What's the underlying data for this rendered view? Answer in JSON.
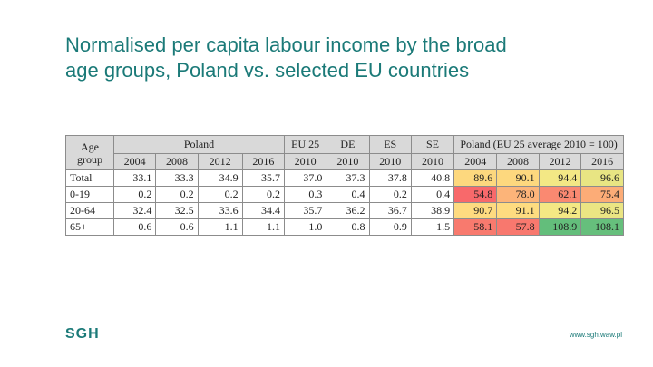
{
  "slide": {
    "title_line1": "Normalised per capita labour income by the broad",
    "title_line2": "age groups, Poland vs. selected EU countries",
    "logo": "SGH",
    "url": "www.sgh.waw.pl"
  },
  "table": {
    "age_header": "Age group",
    "groups": [
      {
        "label": "Poland"
      },
      {
        "label": "EU 25"
      },
      {
        "label": "DE"
      },
      {
        "label": "ES"
      },
      {
        "label": "SE"
      },
      {
        "label": "Poland (EU 25 average 2010 = 100)"
      }
    ],
    "years": [
      "2004",
      "2008",
      "2012",
      "2016",
      "2010",
      "2010",
      "2010",
      "2010",
      "2004",
      "2008",
      "2012",
      "2016"
    ],
    "rows": [
      {
        "label": "Total",
        "values": [
          "33.1",
          "33.3",
          "34.9",
          "35.7",
          "37.0",
          "37.3",
          "37.8",
          "40.8",
          "89.6",
          "90.1",
          "94.4",
          "96.6"
        ],
        "colors": [
          "#fdd87e",
          "#fdd87e",
          "#f3e885",
          "#e8e583"
        ]
      },
      {
        "label": "0-19",
        "values": [
          "0.2",
          "0.2",
          "0.2",
          "0.2",
          "0.3",
          "0.4",
          "0.2",
          "0.4",
          "54.8",
          "78.0",
          "62.1",
          "75.4"
        ],
        "colors": [
          "#f8696b",
          "#fcb479",
          "#fa8971",
          "#fcac77"
        ]
      },
      {
        "label": "20-64",
        "values": [
          "32.4",
          "32.5",
          "33.6",
          "34.4",
          "35.7",
          "36.2",
          "36.7",
          "38.9",
          "90.7",
          "91.1",
          "94.2",
          "96.5"
        ],
        "colors": [
          "#fedb80",
          "#fedc80",
          "#f4e884",
          "#ebe583"
        ]
      },
      {
        "label": "65+",
        "values": [
          "0.6",
          "0.6",
          "1.1",
          "1.1",
          "1.0",
          "0.8",
          "0.9",
          "1.5",
          "58.1",
          "57.8",
          "108.9",
          "108.1"
        ],
        "colors": [
          "#f87a6e",
          "#f8786e",
          "#63be7b",
          "#66bf7c"
        ]
      }
    ]
  }
}
